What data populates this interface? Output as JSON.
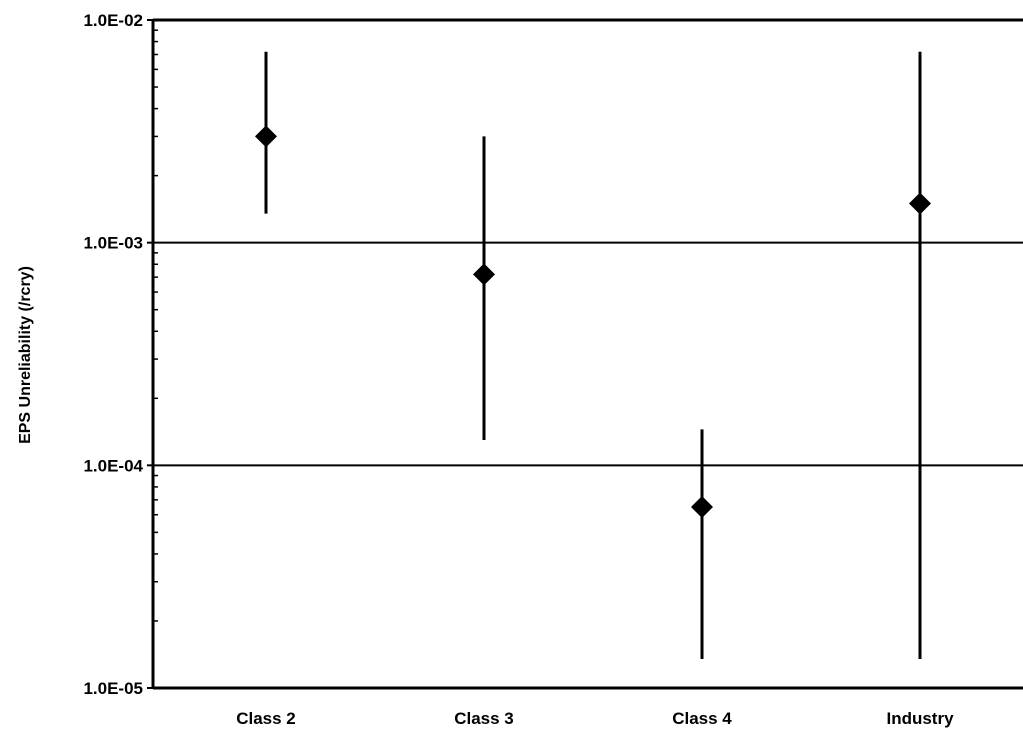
{
  "chart_data": {
    "type": "scatter",
    "title": "",
    "xlabel": "",
    "ylabel": "EPS Unreliability (/rcry)",
    "yscale": "log",
    "ylim": [
      1e-05,
      0.01
    ],
    "yticks": [
      1e-05,
      0.0001,
      0.001,
      0.01
    ],
    "ytick_labels": [
      "1.0E-05",
      "1.0E-04",
      "1.0E-03",
      "1.0E-02"
    ],
    "grid": "horizontal lines at 1.0E-04 and 1.0E-03",
    "legend": "none",
    "marker": "diamond",
    "categories": [
      "Class 2",
      "Class 3",
      "Class 4",
      "Industry"
    ],
    "series": [
      {
        "values": [
          0.003,
          0.00072,
          6.5e-05,
          0.0015
        ],
        "lower": [
          0.00135,
          0.00013,
          1.35e-05,
          1.35e-05
        ],
        "upper": [
          0.0072,
          0.003,
          0.000145,
          0.0072
        ]
      }
    ]
  },
  "colors": {
    "marker": "#000000",
    "axis": "#000000",
    "background": "#ffffff"
  }
}
